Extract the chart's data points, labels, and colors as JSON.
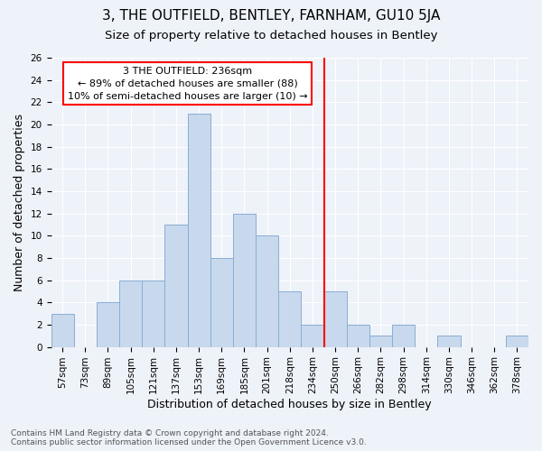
{
  "title": "3, THE OUTFIELD, BENTLEY, FARNHAM, GU10 5JA",
  "subtitle": "Size of property relative to detached houses in Bentley",
  "xlabel": "Distribution of detached houses by size in Bentley",
  "ylabel": "Number of detached properties",
  "categories": [
    "57sqm",
    "73sqm",
    "89sqm",
    "105sqm",
    "121sqm",
    "137sqm",
    "153sqm",
    "169sqm",
    "185sqm",
    "201sqm",
    "218sqm",
    "234sqm",
    "250sqm",
    "266sqm",
    "282sqm",
    "298sqm",
    "314sqm",
    "330sqm",
    "346sqm",
    "362sqm",
    "378sqm"
  ],
  "values": [
    3,
    0,
    4,
    6,
    6,
    11,
    21,
    8,
    12,
    10,
    5,
    2,
    5,
    2,
    1,
    2,
    0,
    1,
    0,
    0,
    1
  ],
  "bar_color": "#c8d9ed",
  "bar_edge_color": "#8aadd4",
  "property_line_idx": 11,
  "annotation_title": "3 THE OUTFIELD: 236sqm",
  "annotation_line1": "← 89% of detached houses are smaller (88)",
  "annotation_line2": "10% of semi-detached houses are larger (10) →",
  "ylim": [
    0,
    26
  ],
  "yticks": [
    0,
    2,
    4,
    6,
    8,
    10,
    12,
    14,
    16,
    18,
    20,
    22,
    24,
    26
  ],
  "footer_line1": "Contains HM Land Registry data © Crown copyright and database right 2024.",
  "footer_line2": "Contains public sector information licensed under the Open Government Licence v3.0.",
  "bg_color": "#eef2f9",
  "grid_color": "#ffffff",
  "title_fontsize": 11,
  "subtitle_fontsize": 9.5,
  "tick_fontsize": 7.5,
  "label_fontsize": 9,
  "footer_fontsize": 6.5
}
